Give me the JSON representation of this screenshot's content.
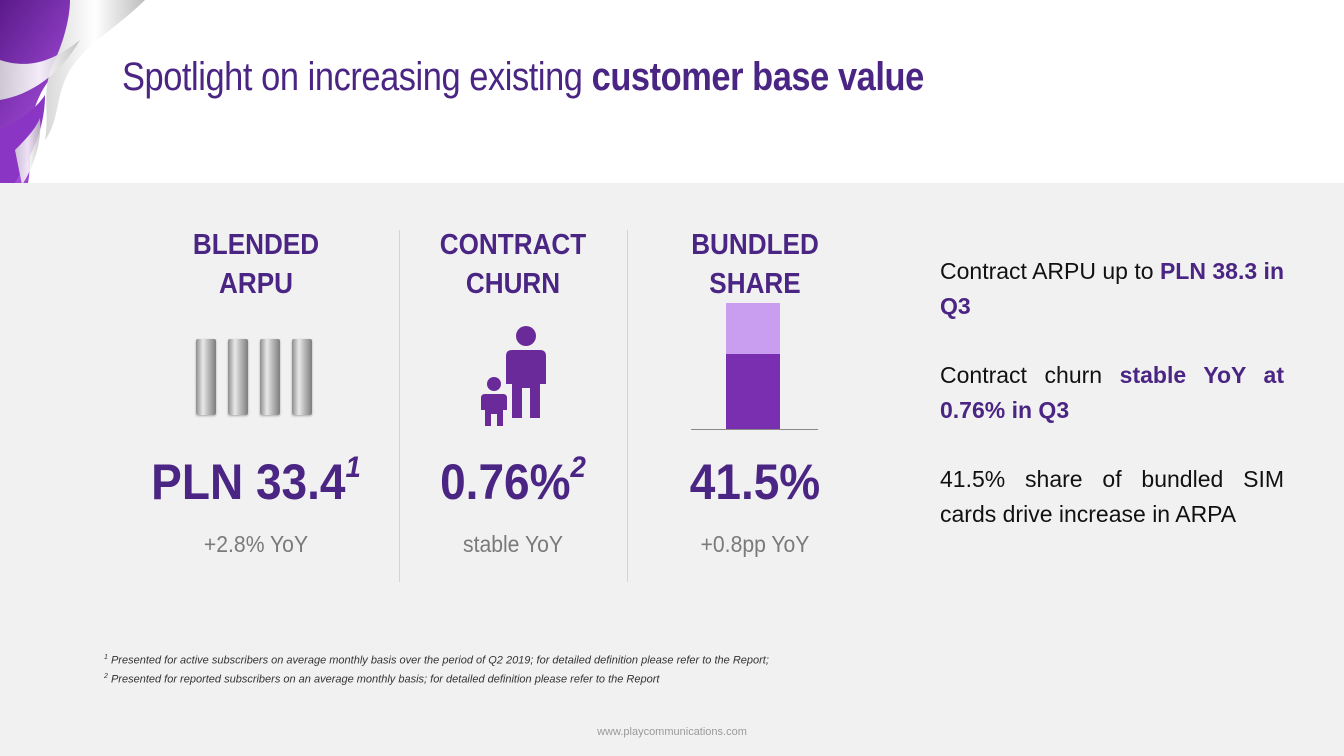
{
  "title": {
    "regular": "Spotlight on increasing existing ",
    "bold": "customer base value"
  },
  "kpis": [
    {
      "head_line1": "BLENDED",
      "head_line2": "ARPU",
      "value": "PLN 33.4",
      "footnote_ref": "1",
      "sub": "+2.8% YoY",
      "icon": "bar-stack-icon"
    },
    {
      "head_line1": "CONTRACT",
      "head_line2": "CHURN",
      "value": "0.76%",
      "footnote_ref": "2",
      "sub": "stable YoY",
      "icon": "parent-child-icon"
    },
    {
      "head_line1": "BUNDLED",
      "head_line2": "SHARE",
      "value": "41.5%",
      "footnote_ref": "",
      "sub": "+0.8pp YoY",
      "icon": "bundled-share-bar-icon",
      "fill_percent": 41.5
    }
  ],
  "bullets": [
    {
      "text": "Contract ARPU up to ",
      "highlight": "PLN 38.3 in Q3",
      "tail": ""
    },
    {
      "text": "Contract churn ",
      "highlight": "stable YoY at 0.76% in Q3",
      "tail": ""
    },
    {
      "text": "41.5% share of bundled SIM cards drive increase in ARPA",
      "highlight": "",
      "tail": ""
    }
  ],
  "footnotes": [
    {
      "num": "1",
      "text": " Presented for active subscribers on average monthly basis over the period of Q2 2019; for detailed definition please refer to the Report;"
    },
    {
      "num": "2",
      "text": " Presented for reported subscribers on an average monthly basis; for detailed definition please refer to the Report"
    }
  ],
  "website": "www.playcommunications.com",
  "colors": {
    "brand_purple": "#4a2583",
    "bar_dark": "#7a2eb0",
    "bar_light": "#c99df0",
    "panel_bg": "#f1f1f1"
  }
}
